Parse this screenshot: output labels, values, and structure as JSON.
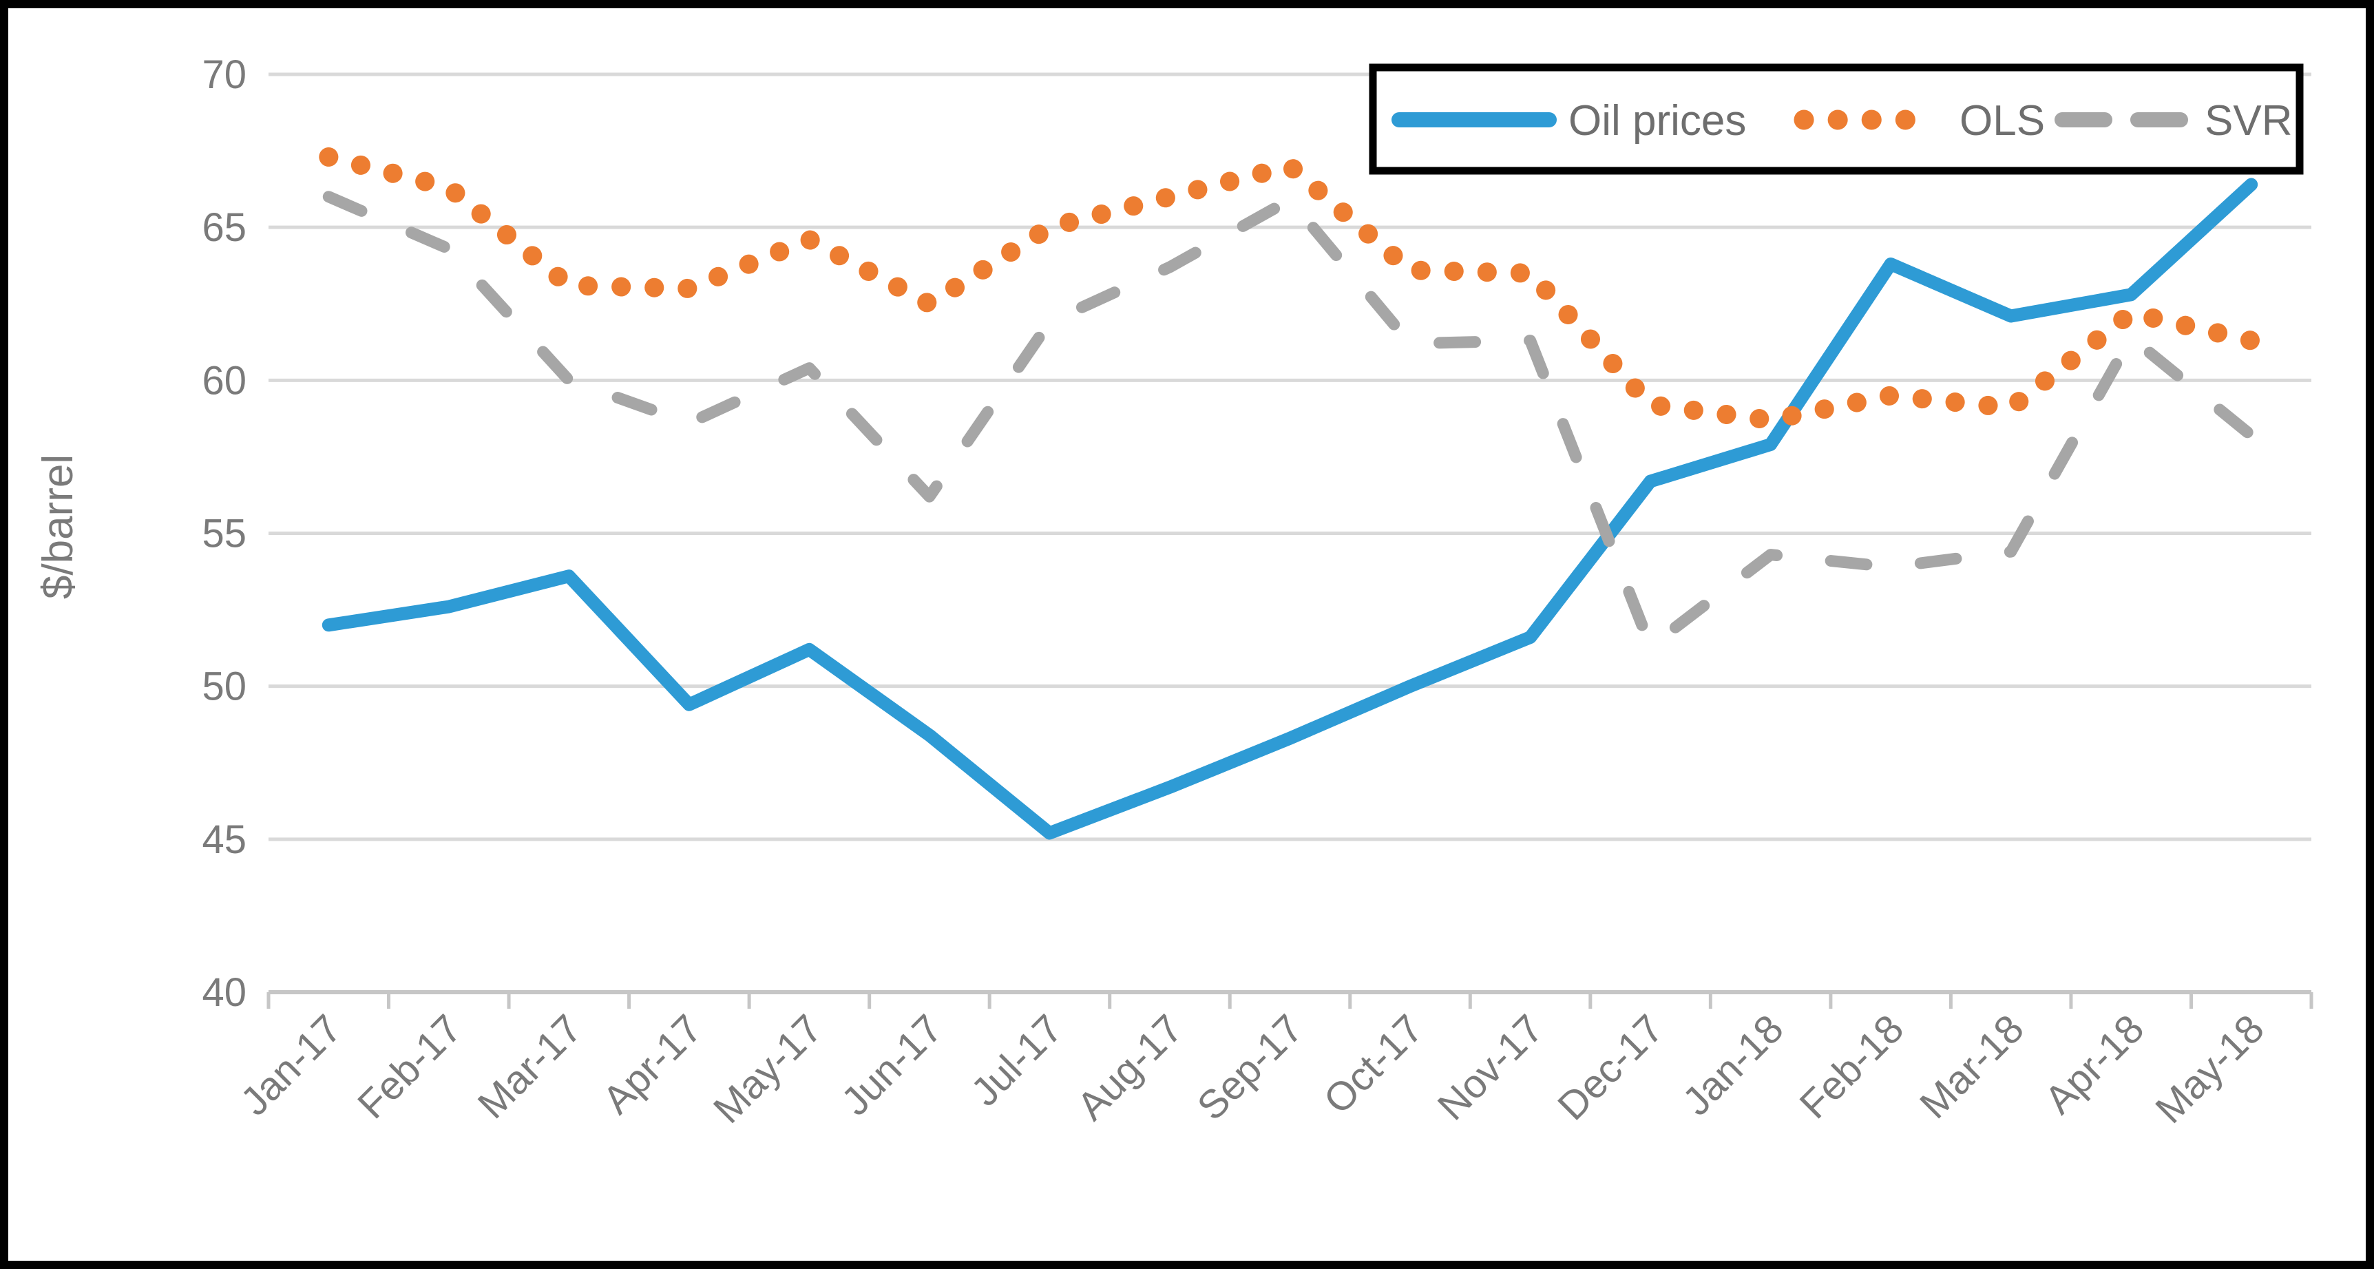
{
  "figure": {
    "background_color": "#FFFFFF",
    "border_color": "#000000"
  },
  "chart_data": {
    "type": "line",
    "title": "",
    "xlabel": "",
    "ylabel": "$/barrel",
    "ylim": [
      40,
      70
    ],
    "ytick_step": 5,
    "yticks": [
      "70",
      "65",
      "60",
      "55",
      "50",
      "45",
      "40"
    ],
    "ytick_values": [
      70,
      65,
      60,
      55,
      50,
      45,
      40
    ],
    "grid": true,
    "gridline_color": "#D9D9D9",
    "axis_line_color": "#C6C6C6",
    "axis_text_color": "#7A7A7A",
    "legend_position": "top-right",
    "legend_border_color": "#000000",
    "legend_text_color": "#6E6E6E",
    "categories": [
      "Jan-17",
      "Feb-17",
      "Mar-17",
      "Apr-17",
      "May-17",
      "Jun-17",
      "Jul-17",
      "Aug-17",
      "Sep-17",
      "Oct-17",
      "Nov-17",
      "Dec-17",
      "Jan-18",
      "Feb-18",
      "Mar-18",
      "Apr-18",
      "May-18"
    ],
    "series": [
      {
        "name": "Oil prices",
        "color": "#2E9BD5",
        "style": "solid",
        "values": [
          52.0,
          52.6,
          53.6,
          49.4,
          51.2,
          48.4,
          45.2,
          46.7,
          48.3,
          50.0,
          51.6,
          56.7,
          57.9,
          63.8,
          62.1,
          62.8,
          66.4
        ]
      },
      {
        "name": "OLS",
        "color": "#ED7D31",
        "style": "dotted",
        "values": [
          67.3,
          66.3,
          63.1,
          63.0,
          64.6,
          62.5,
          65.0,
          66.0,
          67.0,
          63.6,
          63.5,
          59.2,
          58.7,
          59.5,
          59.1,
          62.2,
          61.3
        ]
      },
      {
        "name": "SVR",
        "color": "#A6A6A6",
        "style": "dashed",
        "values": [
          66.0,
          64.3,
          60.0,
          58.6,
          60.4,
          56.2,
          61.9,
          63.7,
          65.9,
          61.2,
          61.3,
          51.3,
          54.3,
          53.9,
          54.4,
          61.4,
          58.2
        ]
      }
    ]
  }
}
